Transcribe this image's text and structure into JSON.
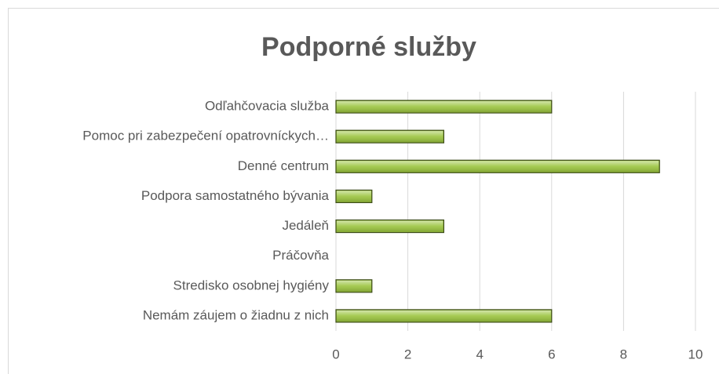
{
  "chart_data": {
    "type": "bar",
    "orientation": "horizontal",
    "title": "Podporné služby",
    "categories": [
      "Odľahčovacia služba",
      "Pomoc pri zabezpečení opatrovníckych…",
      "Denné centrum",
      "Podpora samostatného bývania",
      "Jedáleň",
      "Práčovňa",
      "Stredisko osobnej hygiény",
      "Nemám záujem o žiadnu z nich"
    ],
    "values": [
      6,
      3,
      9,
      1,
      3,
      0,
      1,
      6
    ],
    "color": "#9bc43f",
    "xlim": [
      0,
      10
    ],
    "xticks": [
      0,
      2,
      4,
      6,
      8,
      10
    ],
    "grid": true
  }
}
